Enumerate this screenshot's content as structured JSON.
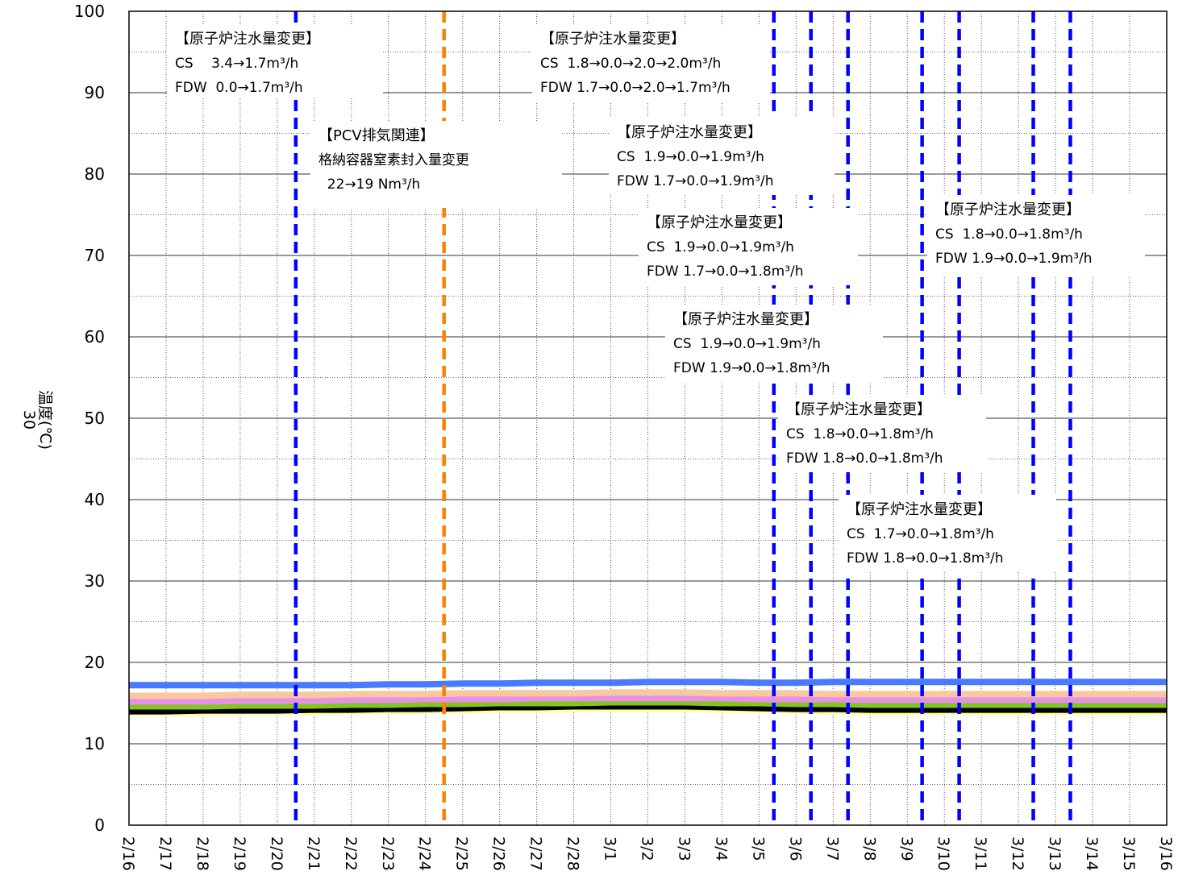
{
  "chart_data": {
    "type": "line",
    "title": "",
    "ylabel_top": "30",
    "ylabel": "温度(℃)",
    "xlabel": "",
    "ylim": [
      0,
      100
    ],
    "y_ticks": [
      0,
      10,
      20,
      30,
      40,
      50,
      60,
      70,
      80,
      90,
      100
    ],
    "x_categories": [
      "2/16",
      "2/17",
      "2/18",
      "2/19",
      "2/20",
      "2/21",
      "2/22",
      "2/23",
      "2/24",
      "2/25",
      "2/26",
      "2/27",
      "2/28",
      "3/1",
      "3/2",
      "3/3",
      "3/4",
      "3/5",
      "3/6",
      "3/7",
      "3/8",
      "3/9",
      "3/10",
      "3/11",
      "3/12",
      "3/13",
      "3/14",
      "3/15",
      "3/16"
    ],
    "grid": true,
    "series": [
      {
        "color": "#ffffa0",
        "values": [
          13.8,
          13.8,
          13.8,
          13.9,
          13.9,
          13.9,
          14.0,
          14.0,
          14.1,
          14.1,
          14.2,
          14.2,
          14.3,
          14.3,
          14.3,
          14.3,
          14.2,
          14.2,
          14.1,
          14.0,
          13.9,
          13.9,
          13.9,
          13.9,
          13.9,
          13.9,
          13.9,
          13.9,
          13.9
        ]
      },
      {
        "color": "#000000",
        "values": [
          14.0,
          14.0,
          14.1,
          14.1,
          14.1,
          14.2,
          14.2,
          14.3,
          14.3,
          14.4,
          14.5,
          14.5,
          14.6,
          14.6,
          14.6,
          14.6,
          14.5,
          14.4,
          14.3,
          14.3,
          14.2,
          14.2,
          14.2,
          14.2,
          14.2,
          14.2,
          14.2,
          14.2,
          14.2
        ]
      },
      {
        "color": "#80c820",
        "values": [
          14.6,
          14.6,
          14.6,
          14.7,
          14.7,
          14.7,
          14.8,
          14.8,
          14.9,
          14.9,
          15.0,
          15.0,
          15.0,
          15.1,
          15.1,
          15.1,
          15.0,
          15.0,
          14.9,
          14.9,
          14.8,
          14.8,
          14.8,
          14.8,
          14.8,
          14.8,
          14.8,
          14.8,
          14.8
        ]
      },
      {
        "color": "#e890e8",
        "values": [
          15.2,
          15.2,
          15.2,
          15.3,
          15.3,
          15.3,
          15.4,
          15.4,
          15.5,
          15.5,
          15.5,
          15.6,
          15.6,
          15.6,
          15.6,
          15.6,
          15.6,
          15.5,
          15.5,
          15.5,
          15.4,
          15.4,
          15.4,
          15.4,
          15.4,
          15.4,
          15.4,
          15.4,
          15.4
        ]
      },
      {
        "color": "#f8c8a0",
        "values": [
          15.9,
          15.9,
          15.9,
          16.0,
          16.0,
          16.0,
          16.1,
          16.1,
          16.1,
          16.2,
          16.2,
          16.2,
          16.2,
          16.3,
          16.3,
          16.3,
          16.2,
          16.2,
          16.2,
          16.1,
          16.1,
          16.1,
          16.1,
          16.1,
          16.1,
          16.1,
          16.1,
          16.1,
          16.1
        ]
      },
      {
        "color": "#4a7aff",
        "values": [
          17.2,
          17.2,
          17.2,
          17.2,
          17.2,
          17.2,
          17.2,
          17.3,
          17.3,
          17.4,
          17.4,
          17.5,
          17.5,
          17.5,
          17.6,
          17.6,
          17.6,
          17.5,
          17.5,
          17.6,
          17.6,
          17.6,
          17.6,
          17.6,
          17.6,
          17.6,
          17.6,
          17.6,
          17.6
        ]
      }
    ],
    "event_lines": [
      {
        "x": 4.5,
        "color": "#0000ff"
      },
      {
        "x": 8.5,
        "color": "#ff8000"
      },
      {
        "x": 17.4,
        "color": "#0000ff"
      },
      {
        "x": 18.4,
        "color": "#0000ff"
      },
      {
        "x": 19.4,
        "color": "#0000ff"
      },
      {
        "x": 21.4,
        "color": "#0000ff"
      },
      {
        "x": 22.4,
        "color": "#0000ff"
      },
      {
        "x": 24.4,
        "color": "#0000ff"
      },
      {
        "x": 25.4,
        "color": "#0000ff"
      }
    ],
    "annotations": [
      {
        "lines": [
          "【原子炉注水量変更】",
          "CS　 3.4→1.7m³/h",
          "FDW  0.0→1.7m³/h"
        ]
      },
      {
        "lines": [
          "【PCV排気関連】",
          "格納容器窒素封入量変更",
          "  22→19 Nm³/h"
        ]
      },
      {
        "lines": [
          "【原子炉注水量変更】",
          "CS  1.8→0.0→2.0→2.0m³/h",
          "FDW 1.7→0.0→2.0→1.7m³/h"
        ]
      },
      {
        "lines": [
          "【原子炉注水量変更】",
          "CS  1.9→0.0→1.9m³/h",
          "FDW 1.7→0.0→1.9m³/h"
        ]
      },
      {
        "lines": [
          "【原子炉注水量変更】",
          "CS  1.9→0.0→1.9m³/h",
          "FDW 1.7→0.0→1.8m³/h"
        ]
      },
      {
        "lines": [
          "【原子炉注水量変更】",
          "CS  1.9→0.0→1.9m³/h",
          "FDW 1.9→0.0→1.8m³/h"
        ]
      },
      {
        "lines": [
          "【原子炉注水量変更】",
          "CS  1.8→0.0→1.8m³/h",
          "FDW 1.8→0.0→1.8m³/h"
        ]
      },
      {
        "lines": [
          "【原子炉注水量変更】",
          "CS  1.7→0.0→1.8m³/h",
          "FDW 1.8→0.0→1.8m³/h"
        ]
      },
      {
        "lines": [
          "【原子炉注水量変更】",
          "CS  1.8→0.0→1.8m³/h",
          "FDW 1.9→0.0→1.9m³/h"
        ]
      }
    ]
  }
}
